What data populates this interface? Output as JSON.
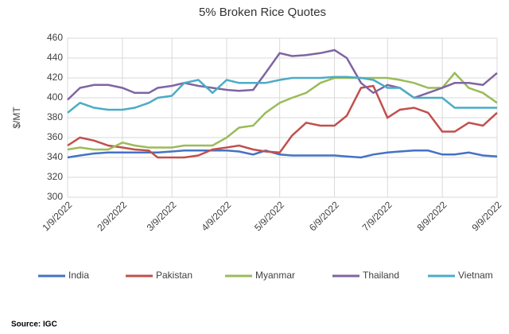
{
  "chart_data": {
    "type": "line",
    "title": "5% Broken Rice Quotes",
    "y_label": "$/MT",
    "source": "Source: IGC",
    "x": [
      "1/9/2022",
      "1/16/2022",
      "1/24/2022",
      "2/1/2022",
      "2/9/2022",
      "2/16/2022",
      "2/24/2022",
      "3/1/2022",
      "3/9/2022",
      "3/16/2022",
      "3/24/2022",
      "4/1/2022",
      "4/9/2022",
      "4/16/2022",
      "4/24/2022",
      "5/1/2022",
      "5/9/2022",
      "5/16/2022",
      "5/24/2022",
      "6/1/2022",
      "6/9/2022",
      "6/16/2022",
      "6/24/2022",
      "7/1/2022",
      "7/9/2022",
      "7/16/2022",
      "7/24/2022",
      "8/1/2022",
      "8/9/2022",
      "8/16/2022",
      "8/24/2022",
      "9/1/2022",
      "9/9/2022"
    ],
    "series": [
      {
        "name": "India",
        "color": "#4472c4",
        "values": [
          340,
          342,
          344,
          345,
          345,
          345,
          345,
          345,
          346,
          347,
          347,
          347,
          347,
          346,
          343,
          347,
          343,
          342,
          342,
          342,
          342,
          341,
          340,
          343,
          345,
          346,
          347,
          347,
          343,
          343,
          345,
          342,
          341
        ]
      },
      {
        "name": "Pakistan",
        "color": "#c0504d",
        "values": [
          352,
          360,
          357,
          352,
          350,
          348,
          347,
          340,
          340,
          340,
          342,
          348,
          350,
          352,
          348,
          346,
          345,
          362,
          375,
          372,
          372,
          382,
          410,
          412,
          380,
          388,
          390,
          385,
          366,
          366,
          375,
          372,
          385
        ]
      },
      {
        "name": "Myanmar",
        "color": "#9bbb59",
        "values": [
          348,
          350,
          348,
          348,
          355,
          352,
          350,
          350,
          350,
          352,
          352,
          352,
          360,
          370,
          372,
          385,
          395,
          400,
          405,
          415,
          420,
          420,
          420,
          420,
          420,
          418,
          415,
          410,
          410,
          425,
          410,
          405,
          395
        ]
      },
      {
        "name": "Thailand",
        "color": "#8064a2",
        "values": [
          398,
          410,
          413,
          413,
          410,
          405,
          405,
          410,
          412,
          415,
          412,
          410,
          408,
          407,
          408,
          425,
          445,
          442,
          443,
          445,
          448,
          440,
          415,
          405,
          413,
          410,
          400,
          405,
          410,
          415,
          415,
          413,
          425
        ]
      },
      {
        "name": "Vietnam",
        "color": "#4bacc6",
        "values": [
          385,
          395,
          390,
          388,
          388,
          390,
          395,
          400,
          402,
          415,
          418,
          405,
          418,
          415,
          415,
          415,
          418,
          420,
          420,
          420,
          421,
          421,
          420,
          418,
          410,
          410,
          400,
          400,
          400,
          390,
          390,
          390,
          390
        ]
      }
    ],
    "xlim": [
      "1/9/2022",
      "9/9/2022"
    ],
    "xticks": [
      "1/9/2022",
      "2/9/2022",
      "3/9/2022",
      "4/9/2022",
      "5/9/2022",
      "6/9/2022",
      "7/9/2022",
      "8/9/2022",
      "9/9/2022"
    ],
    "ylim": [
      300,
      460
    ],
    "yticks": [
      300,
      320,
      340,
      360,
      380,
      400,
      420,
      440,
      460
    ],
    "grid": true
  }
}
